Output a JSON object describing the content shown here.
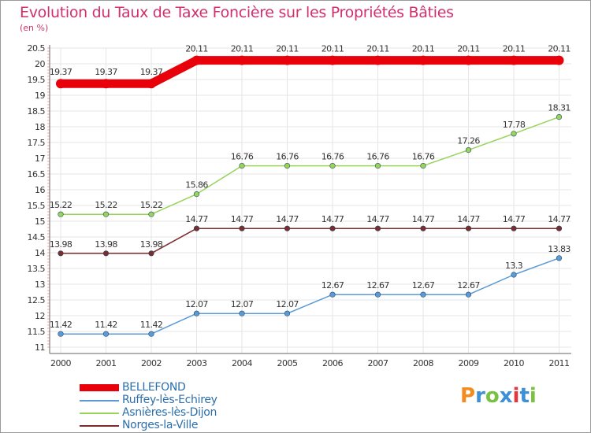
{
  "title": "Evolution du Taux de Taxe Foncière sur les Propriétés Bâties",
  "unit_label": "(en %)",
  "logo": {
    "letters": [
      "P",
      "r",
      "o",
      "x",
      "i",
      "t",
      "i"
    ],
    "colors": [
      "#f28c1e",
      "#3d8fd6",
      "#7ac142",
      "#3d8fd6",
      "#e8323c",
      "#3d8fd6",
      "#7ac142"
    ]
  },
  "chart_data": {
    "type": "line",
    "title": "Evolution du Taux de Taxe Foncière sur les Propriétés Bâties",
    "ylabel": "(en %)",
    "xlabel": "",
    "x": [
      "2000",
      "2001",
      "2002",
      "2003",
      "2004",
      "2005",
      "2006",
      "2007",
      "2008",
      "2009",
      "2010",
      "2011"
    ],
    "ylim": [
      11,
      20.5
    ],
    "yticks": [
      "11",
      "11.5",
      "12",
      "12.5",
      "13",
      "13.5",
      "14",
      "14.5",
      "15",
      "15.5",
      "16",
      "16.5",
      "17",
      "17.5",
      "18",
      "18.5",
      "19",
      "19.5",
      "20",
      "20.5"
    ],
    "grid": true,
    "legend_position": "bottom-left",
    "series": [
      {
        "name": "BELLEFOND",
        "color": "#e8000b",
        "values": [
          19.37,
          19.37,
          19.37,
          20.11,
          20.11,
          20.11,
          20.11,
          20.11,
          20.11,
          20.11,
          20.11,
          20.11
        ],
        "labels": [
          "19.37",
          "19.37",
          "19.37",
          "20.11",
          "20.11",
          "20.11",
          "20.11",
          "20.11",
          "20.11",
          "20.11",
          "20.11",
          "20.11"
        ]
      },
      {
        "name": "Ruffey-lès-Echirey",
        "color": "#5b9bd5",
        "values": [
          11.42,
          11.42,
          11.42,
          12.07,
          12.07,
          12.07,
          12.67,
          12.67,
          12.67,
          12.67,
          13.3,
          13.83
        ],
        "labels": [
          "11.42",
          "11.42",
          "11.42",
          "12.07",
          "12.07",
          "12.07",
          "12.67",
          "12.67",
          "12.67",
          "12.67",
          "13.3",
          "13.83"
        ]
      },
      {
        "name": "Asnières-lès-Dijon",
        "color": "#96d45a",
        "values": [
          15.22,
          15.22,
          15.22,
          15.86,
          16.76,
          16.76,
          16.76,
          16.76,
          16.76,
          17.26,
          17.78,
          18.31
        ],
        "labels": [
          "15.22",
          "15.22",
          "15.22",
          "15.86",
          "16.76",
          "16.76",
          "16.76",
          "16.76",
          "16.76",
          "17.26",
          "17.78",
          "18.31"
        ]
      },
      {
        "name": "Norges-la-Ville",
        "color": "#7b2c2c",
        "values": [
          13.98,
          13.98,
          13.98,
          14.77,
          14.77,
          14.77,
          14.77,
          14.77,
          14.77,
          14.77,
          14.77,
          14.77
        ],
        "labels": [
          "13.98",
          "13.98",
          "13.98",
          "14.77",
          "14.77",
          "14.77",
          "14.77",
          "14.77",
          "14.77",
          "14.77",
          "14.77",
          "14.77"
        ]
      }
    ]
  }
}
